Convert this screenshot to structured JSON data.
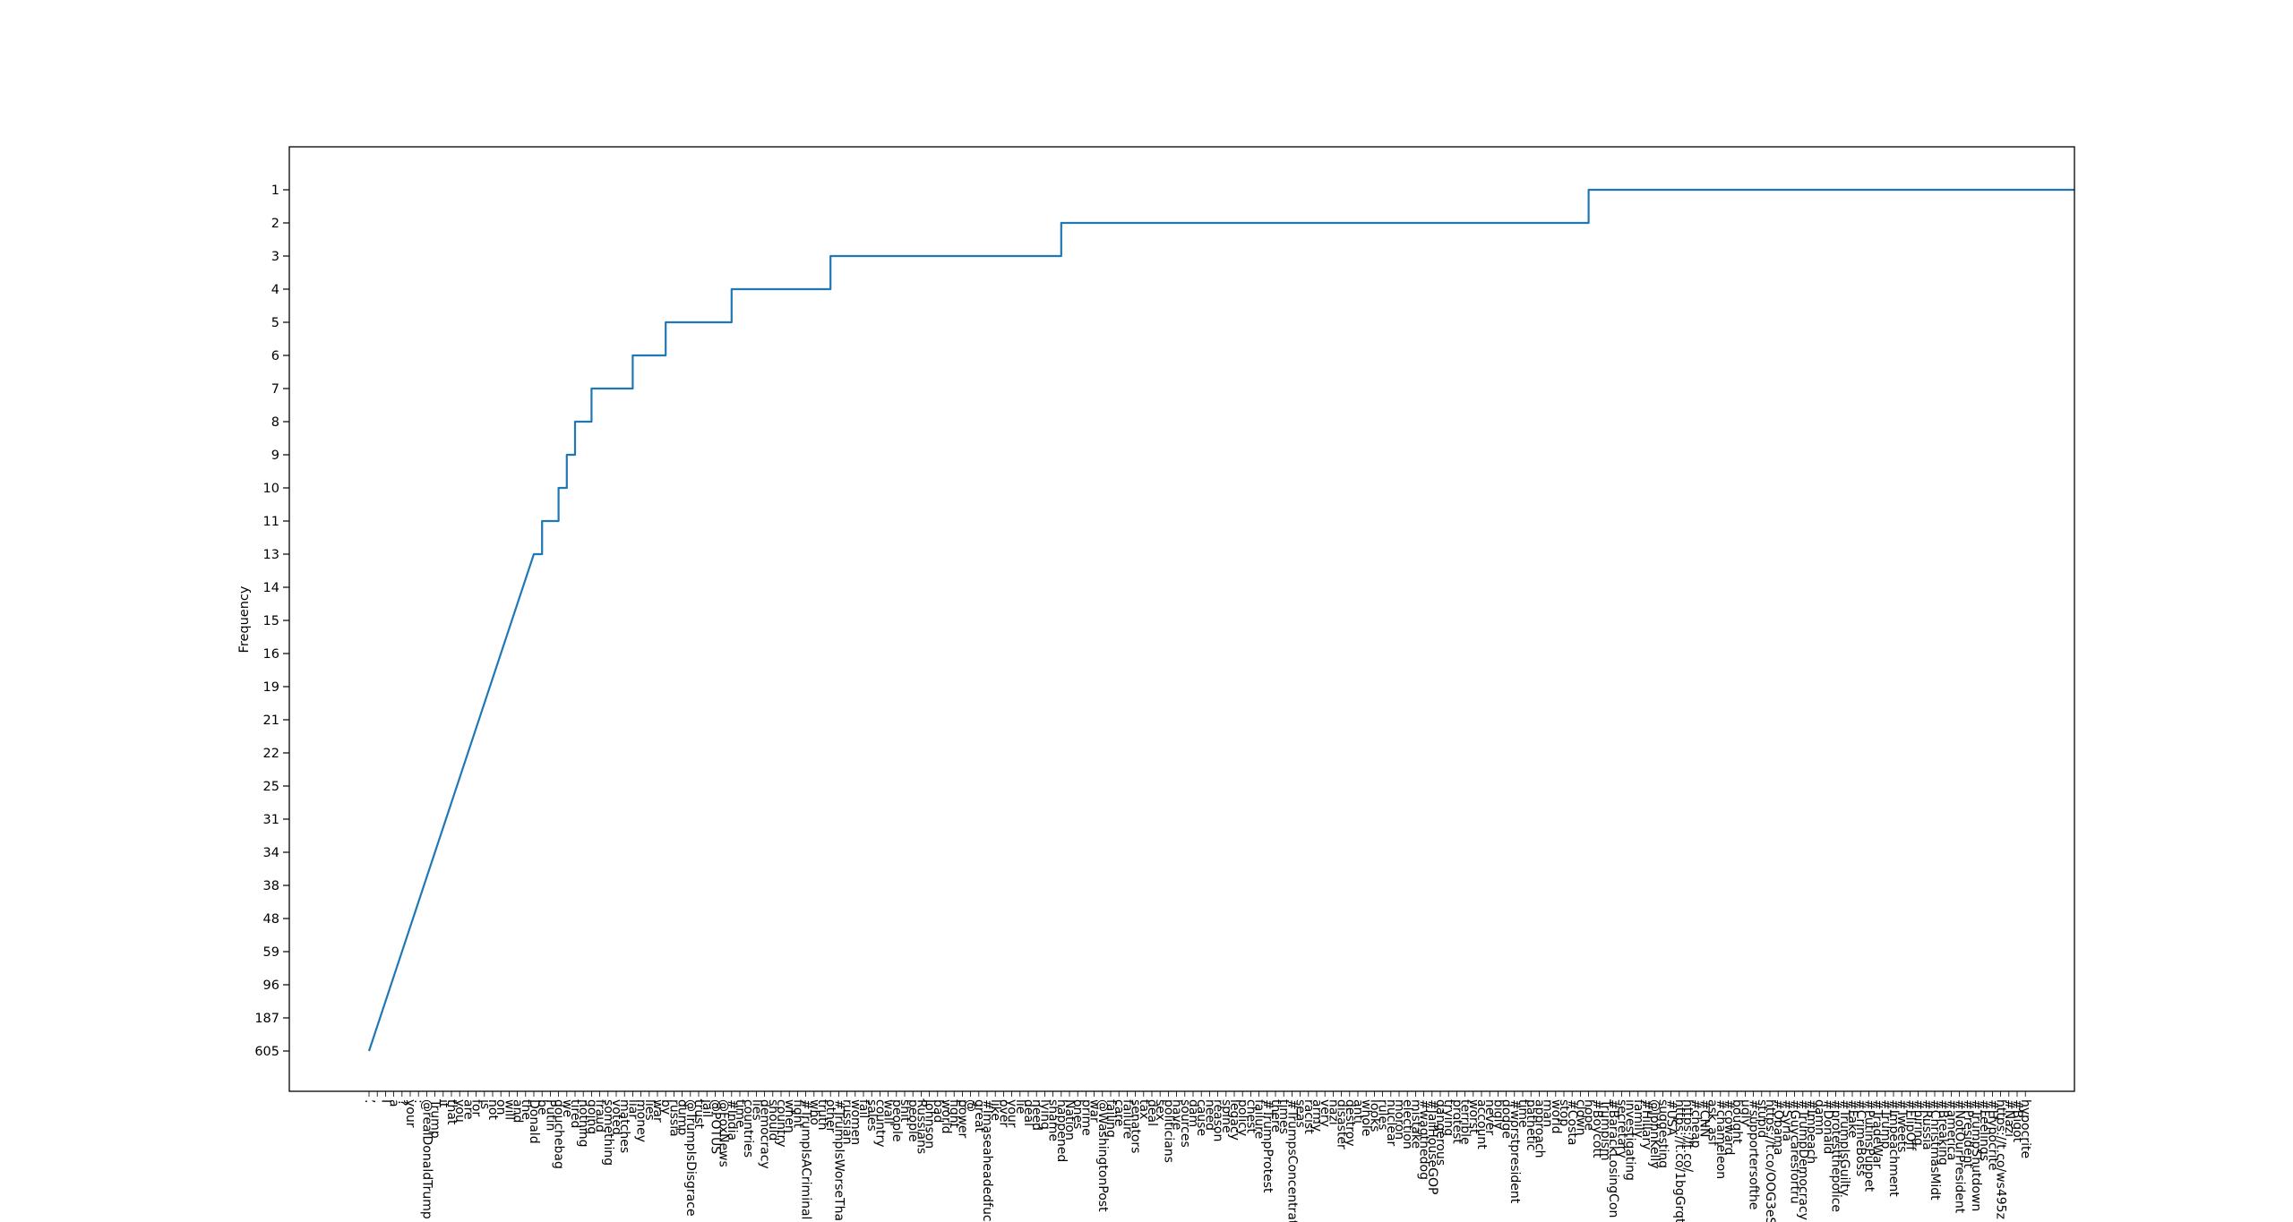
{
  "chart_data": {
    "type": "line",
    "title": "",
    "xlabel": "",
    "ylabel": "Frequency",
    "legend": "none",
    "grid": false,
    "line_color": "#1f77b4",
    "y_ticks": [
      "1",
      "2",
      "3",
      "4",
      "5",
      "6",
      "7",
      "8",
      "9",
      "10",
      "11",
      "13",
      "14",
      "15",
      "16",
      "19",
      "21",
      "22",
      "25",
      "31",
      "34",
      "38",
      "48",
      "59",
      "96",
      "187",
      "605"
    ],
    "x_legible": [
      ".",
      ",",
      "I",
      "a",
      "?",
      "your",
      ":",
      "@realDonaldTrump",
      "Trump",
      "it",
      "that",
      "you",
      "are",
      "for",
      "is",
      "not",
      "on",
      "will",
      "and",
      "the",
      "Donald",
      "be",
      "Putin",
      "douchebag",
      "we",
      "tired",
      "nothing",
      "going",
      "fraud",
      "something",
      "voted",
      "matches",
      "liar",
      "money",
      "lies",
      "war",
      "by",
      "russia",
      "dump",
      "@TrumpIsDisgrace",
      "trust",
      "jail",
      "@POTUS",
      "@FoxNews",
      "#India",
      "time",
      "countries",
      "lies",
      "democracy",
      "should",
      "country",
      "when",
      "fight",
      "#TrumpIsACriminal",
      "who",
      "truth",
      "other",
      "#TrumpIsWorseThan",
      "russian",
      "women",
      "fail",
      "sales",
      "country",
      "wall",
      "people",
      "shit",
      "people",
      "Russians",
      "Johnson",
      "bad",
      "world",
      "fight",
      "power",
      "@",
      "great",
      "#Imaseaheadedfuck",
      "like",
      "over",
      "your",
      "lie",
      "deal",
      "need",
      "lying",
      "shame",
      "happened",
      "Nation",
      "ones",
      "prime",
      "war",
      "@WashingtonPost",
      "failing",
      "care",
      "failure",
      "senators",
      "tax",
      "deal",
      "sex",
      "politicians",
      "have",
      "sources",
      "dam",
      "cause",
      "need",
      "reason",
      "spine",
      "legacy",
      "policy",
      "chest",
      "failure",
      "#TrumpProtest",
      "there",
      "times",
      "#TrumpsConcentrat",
      "seas",
      "racist",
      "army",
      "very",
      "nazi",
      "disaster",
      "destroy",
      "anti",
      "whole",
      "looks",
      "rules",
      "nuclear",
      "moron",
      "election",
      "mistake",
      "#wagthedog",
      "#JailHouseGOP",
      "dangerous",
      "trying",
      "protest",
      "terrible",
      "worst",
      "account",
      "never",
      "bigly",
      "dodge",
      "#worstpresident",
      "time",
      "pathetic",
      "approach",
      "man",
      "world",
      "stop",
      "#Costa",
      "clown",
      "hope",
      "#Boycott",
      "Trumpism",
      "#BarackLosingCon",
      "secretary",
      "investigating",
      "family",
      "#Hillary",
      "@JohnKelly",
      "suggesting",
      "#USA",
      "https://t.co/1bgGrqt",
      "https://t.co/",
      "#cheap",
      "#CNN",
      "ask_asf",
      "#chameleon",
      "#coward",
      "bought",
      "ugly",
      "#supportersofthe",
      "stupid",
      "https://t.co/OOG3eS",
      "#Obama",
      "#Syria",
      "#Guycaresfortru",
      "#TrumpDemocracy",
      "#Impeach",
      "damn",
      "#Donald",
      "#protestthepolice",
      "#TrumpIsGuilty",
      "#Fake",
      "#CrimeBoss",
      "#PutinsPuppet",
      "#TradeWar",
      "#Trump",
      "#Impeachment",
      "#Tweets",
      "#FlipOff",
      "#hiring",
      "#Russia",
      "#ChristmasMidt",
      "#Breaking",
      "#america",
      "#NotOurPresident",
      "#President",
      "#TrumpShutdown",
      "#Feelings",
      "#Hypocrite",
      "https://t.co/ws495z",
      "#Nazi",
      "#Bigot",
      "hypocrite"
    ],
    "series": [
      {
        "values": [
          {
            "x_from": 0,
            "x_to": 20,
            "freq_from": "605",
            "freq_to": "13"
          },
          {
            "x_from": 20,
            "x_to": 21,
            "freq": "13"
          },
          {
            "x_from": 21,
            "x_to": 23,
            "freq": "11"
          },
          {
            "x_from": 23,
            "x_to": 24,
            "freq": "10"
          },
          {
            "x_from": 24,
            "x_to": 25,
            "freq": "9"
          },
          {
            "x_from": 25,
            "x_to": 27,
            "freq": "8"
          },
          {
            "x_from": 27,
            "x_to": 32,
            "freq": "7"
          },
          {
            "x_from": 32,
            "x_to": 36,
            "freq": "6"
          },
          {
            "x_from": 36,
            "x_to": 44,
            "freq": "5"
          },
          {
            "x_from": 44,
            "x_to": 56,
            "freq": "4"
          },
          {
            "x_from": 56,
            "x_to": 84,
            "freq": "3"
          },
          {
            "x_from": 84,
            "x_to": 148,
            "freq": "2"
          },
          {
            "x_from": 148,
            "x_to": 207,
            "freq": "1"
          }
        ]
      }
    ]
  }
}
